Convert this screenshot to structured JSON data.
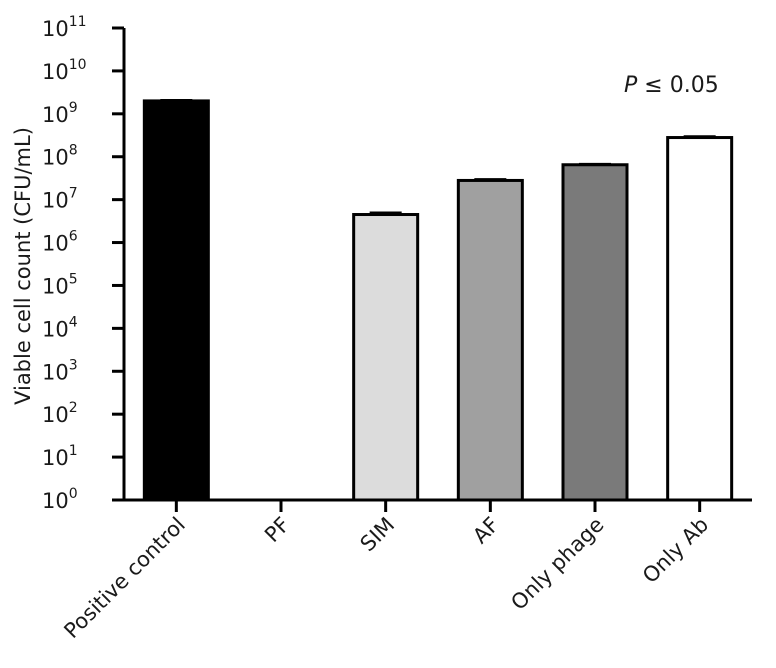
{
  "chart_data": {
    "type": "bar",
    "title": "",
    "xlabel": "",
    "ylabel": "Viable cell count (CFU/mL)",
    "yscale": "log",
    "ylim": [
      1,
      100000000000
    ],
    "y_ticks": [
      {
        "base": "10",
        "exp": "0"
      },
      {
        "base": "10",
        "exp": "1"
      },
      {
        "base": "10",
        "exp": "2"
      },
      {
        "base": "10",
        "exp": "3"
      },
      {
        "base": "10",
        "exp": "4"
      },
      {
        "base": "10",
        "exp": "5"
      },
      {
        "base": "10",
        "exp": "6"
      },
      {
        "base": "10",
        "exp": "7"
      },
      {
        "base": "10",
        "exp": "8"
      },
      {
        "base": "10",
        "exp": "9"
      },
      {
        "base": "10",
        "exp": "10"
      },
      {
        "base": "10",
        "exp": "11"
      }
    ],
    "categories": [
      "Positive control",
      "PF",
      "SIM",
      "AF",
      "Only phage",
      "Only Ab"
    ],
    "values": [
      2000000000,
      0,
      4500000,
      28000000,
      65000000,
      280000000
    ],
    "error_upper": [
      2100000000,
      0,
      5000000,
      30000000,
      68000000,
      300000000
    ],
    "bar_colors": [
      "#000000",
      "#ffffff",
      "#dcdcdc",
      "#a0a0a0",
      "#7a7a7a",
      "#ffffff"
    ],
    "grid": false,
    "legend": "none",
    "annotation": {
      "italic": "P",
      "rest": " ≤ 0.05"
    }
  }
}
